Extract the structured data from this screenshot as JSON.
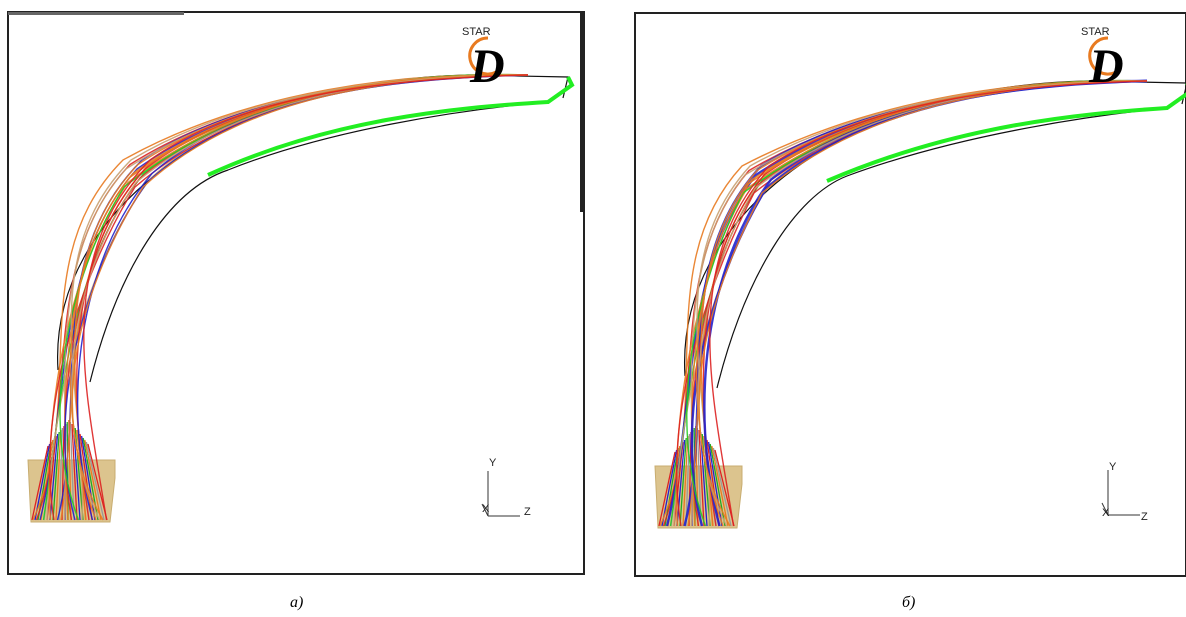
{
  "panels": [
    {
      "logo": {
        "star": "STAR",
        "letter": "D"
      },
      "axes": {
        "y": "Y",
        "z": "Z",
        "x": "X"
      },
      "caption": "а)"
    },
    {
      "logo": {
        "star": "STAR",
        "letter": "D"
      },
      "axes": {
        "y": "Y",
        "z": "Z",
        "x": "X"
      },
      "caption": "б)"
    }
  ]
}
